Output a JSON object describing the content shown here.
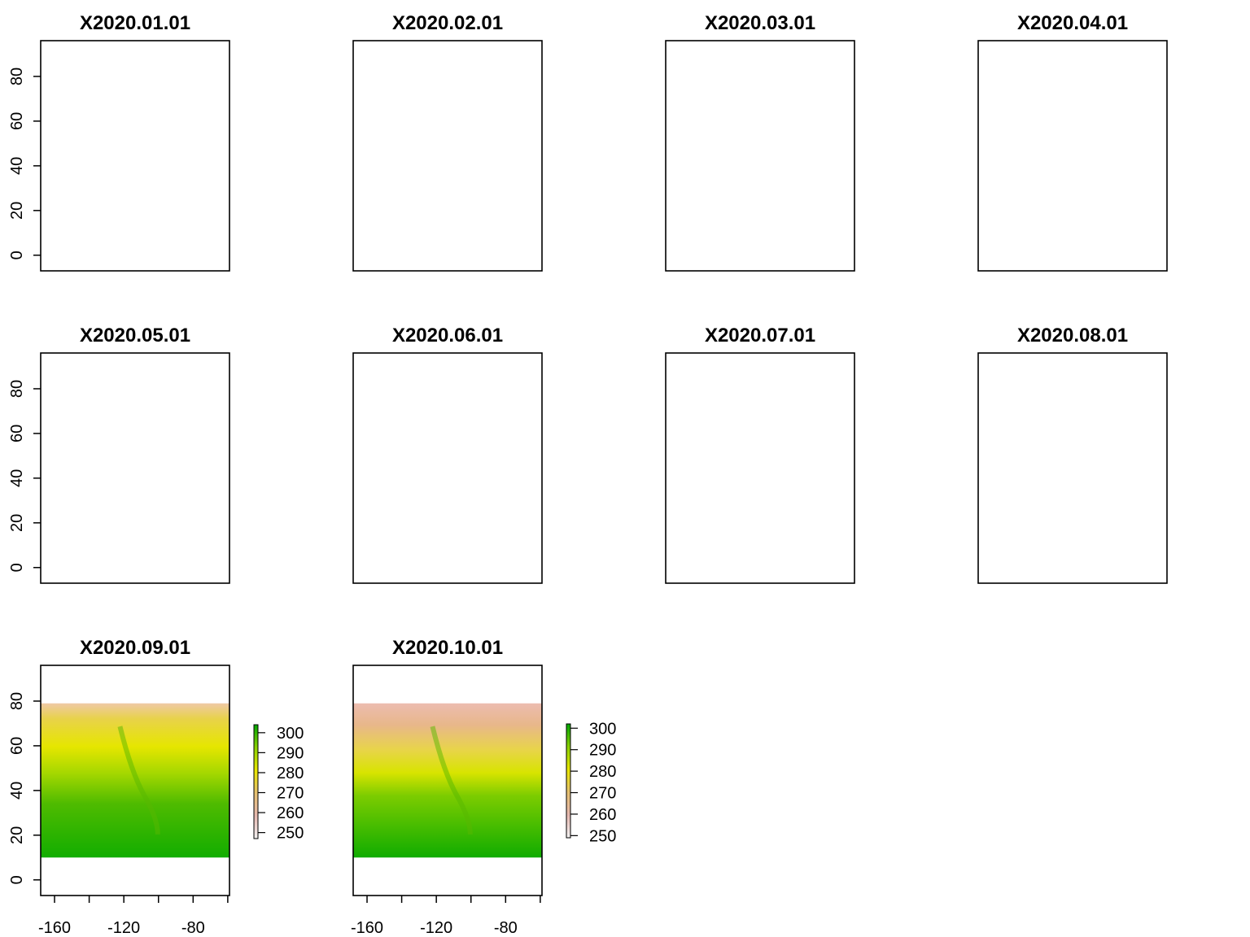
{
  "chart_data": {
    "type": "heatmap",
    "layout": "grid 3x4",
    "colors": {
      "low": "#f2f2f2",
      "mid_low": "#e6a8a0",
      "mid": "#e8e600",
      "high": "#00a600"
    },
    "panels": [
      {
        "title": "X2020.01.01",
        "has_data": false,
        "ylim": [
          -7,
          96
        ],
        "yticks": [
          0,
          20,
          40,
          60,
          80
        ]
      },
      {
        "title": "X2020.02.01",
        "has_data": false,
        "ylim": [
          -7,
          96
        ]
      },
      {
        "title": "X2020.03.01",
        "has_data": false,
        "ylim": [
          -7,
          96
        ]
      },
      {
        "title": "X2020.04.01",
        "has_data": false,
        "ylim": [
          -7,
          96
        ]
      },
      {
        "title": "X2020.05.01",
        "has_data": false,
        "ylim": [
          -7,
          96
        ],
        "yticks": [
          0,
          20,
          40,
          60,
          80
        ]
      },
      {
        "title": "X2020.06.01",
        "has_data": false,
        "ylim": [
          -7,
          96
        ]
      },
      {
        "title": "X2020.07.01",
        "has_data": false,
        "ylim": [
          -7,
          96
        ]
      },
      {
        "title": "X2020.08.01",
        "has_data": false,
        "ylim": [
          -7,
          96
        ]
      },
      {
        "title": "X2020.09.01",
        "has_data": true,
        "xlim": [
          -168,
          -59
        ],
        "ylim": [
          -7,
          96
        ],
        "raster_extent": {
          "x": [
            -168,
            -59
          ],
          "y": [
            10,
            79
          ]
        },
        "yticks": [
          0,
          20,
          40,
          60,
          80
        ],
        "xticks": [
          -160,
          -140,
          -120,
          -100,
          -80,
          -60
        ],
        "xtick_labels": [
          -160,
          -120,
          -80
        ],
        "legend": {
          "min": 247,
          "max": 304,
          "ticks": [
            250,
            260,
            270,
            280,
            290,
            300
          ]
        }
      },
      {
        "title": "X2020.10.01",
        "has_data": true,
        "xlim": [
          -168,
          -59
        ],
        "ylim": [
          -7,
          96
        ],
        "raster_extent": {
          "x": [
            -168,
            -59
          ],
          "y": [
            10,
            79
          ]
        },
        "xticks": [
          -160,
          -140,
          -120,
          -100,
          -80,
          -60
        ],
        "xtick_labels": [
          -160,
          -120,
          -80
        ],
        "legend": {
          "min": 249,
          "max": 302,
          "ticks": [
            250,
            260,
            270,
            280,
            290,
            300
          ]
        }
      }
    ]
  }
}
